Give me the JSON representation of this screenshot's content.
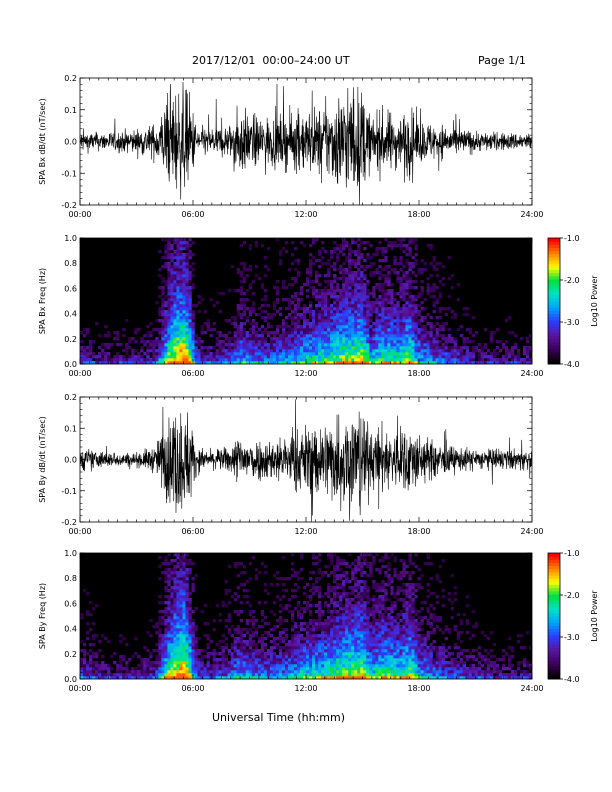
{
  "header": {
    "title": "2017/12/01  00:00–24:00 UT",
    "page": "Page 1/1"
  },
  "xlabel": "Universal Time (hh:mm)",
  "colors": {
    "waveform": "#000000",
    "colormap": [
      "#000000",
      "#3b005a",
      "#5a14a0",
      "#2c3cff",
      "#00a0ff",
      "#00e0c8",
      "#00e040",
      "#ffff00",
      "#ff8000",
      "#ff0000"
    ]
  },
  "chart_data": [
    {
      "type": "line",
      "ylabel": "SPA Bx dB/dt (nT/sec)",
      "x_ticks": [
        "00:00",
        "06:00",
        "12:00",
        "18:00",
        "24:00"
      ],
      "xlim": [
        0,
        24
      ],
      "ylim": [
        -0.2,
        0.2
      ],
      "y_ticks": [
        "-0.2",
        "-0.1",
        "0.0",
        "0.1",
        "0.2"
      ],
      "y_tick_values": [
        -0.2,
        -0.1,
        0.0,
        0.1,
        0.2
      ],
      "activity_hours": [
        0,
        1,
        2,
        3,
        4,
        4.7,
        5.0,
        5.5,
        5.8,
        6.2,
        7,
        8,
        8.5,
        9,
        10,
        11,
        12,
        13,
        13.5,
        14,
        15,
        15.5,
        16,
        17,
        17.5,
        18,
        19,
        20,
        21,
        22,
        23,
        24
      ],
      "activity_amplitude": [
        0.06,
        0.05,
        0.06,
        0.07,
        0.1,
        0.25,
        0.3,
        0.3,
        0.28,
        0.08,
        0.08,
        0.1,
        0.2,
        0.15,
        0.14,
        0.15,
        0.18,
        0.2,
        0.25,
        0.3,
        0.3,
        0.12,
        0.18,
        0.15,
        0.2,
        0.12,
        0.1,
        0.08,
        0.06,
        0.05,
        0.05,
        0.05
      ]
    },
    {
      "type": "heatmap",
      "ylabel": "SPA Bx Freq (Hz)",
      "x_ticks": [
        "00:00",
        "06:00",
        "12:00",
        "18:00",
        "24:00"
      ],
      "xlim": [
        0,
        24
      ],
      "ylim": [
        0,
        1.0
      ],
      "y_ticks": [
        "0.0",
        "0.2",
        "0.4",
        "0.6",
        "0.8",
        "1.0"
      ],
      "y_tick_values": [
        0,
        0.2,
        0.4,
        0.6,
        0.8,
        1.0
      ],
      "colorbar_label": "Log10 Power",
      "colorbar_range": [
        -4.0,
        -1.0
      ],
      "colorbar_ticks": [
        "-1.0",
        "-2.0",
        "-3.0",
        "-4.0"
      ],
      "colorbar_tick_values": [
        -1.0,
        -2.0,
        -3.0,
        -4.0
      ],
      "activity_hours": [
        0,
        1,
        2,
        3,
        4,
        4.7,
        5.0,
        5.5,
        5.8,
        6.2,
        7,
        8,
        8.5,
        9,
        10,
        11,
        12,
        13,
        13.5,
        14,
        15,
        15.5,
        16,
        17,
        17.5,
        18,
        19,
        20,
        21,
        22,
        23,
        24
      ],
      "activity_level": [
        0.35,
        0.3,
        0.3,
        0.3,
        0.35,
        0.75,
        0.85,
        0.95,
        0.8,
        0.4,
        0.35,
        0.4,
        0.55,
        0.5,
        0.45,
        0.5,
        0.6,
        0.65,
        0.7,
        0.75,
        0.8,
        0.55,
        0.7,
        0.65,
        0.75,
        0.55,
        0.45,
        0.4,
        0.3,
        0.3,
        0.3,
        0.3
      ]
    },
    {
      "type": "line",
      "ylabel": "SPA By dB/dt (nT/sec)",
      "x_ticks": [
        "00:00",
        "06:00",
        "12:00",
        "18:00",
        "24:00"
      ],
      "xlim": [
        0,
        24
      ],
      "ylim": [
        -0.2,
        0.2
      ],
      "y_ticks": [
        "-0.2",
        "-0.1",
        "0.0",
        "0.1",
        "0.2"
      ],
      "y_tick_values": [
        -0.2,
        -0.1,
        0.0,
        0.1,
        0.2
      ],
      "activity_hours": [
        0,
        1,
        2,
        3,
        4,
        4.7,
        5.0,
        5.5,
        5.8,
        6.2,
        7,
        8,
        8.5,
        9,
        10,
        11,
        12,
        13,
        13.5,
        14,
        15,
        15.5,
        16,
        17,
        17.5,
        18,
        19,
        20,
        21,
        22,
        23,
        24
      ],
      "activity_amplitude": [
        0.07,
        0.05,
        0.04,
        0.04,
        0.08,
        0.25,
        0.3,
        0.3,
        0.28,
        0.07,
        0.05,
        0.08,
        0.15,
        0.12,
        0.12,
        0.14,
        0.2,
        0.22,
        0.25,
        0.3,
        0.3,
        0.15,
        0.2,
        0.16,
        0.22,
        0.14,
        0.1,
        0.07,
        0.06,
        0.06,
        0.06,
        0.06
      ]
    },
    {
      "type": "heatmap",
      "ylabel": "SPA By Freq (Hz)",
      "x_ticks": [
        "00:00",
        "06:00",
        "12:00",
        "18:00",
        "24:00"
      ],
      "xlim": [
        0,
        24
      ],
      "ylim": [
        0,
        1.0
      ],
      "y_ticks": [
        "0.0",
        "0.2",
        "0.4",
        "0.6",
        "0.8",
        "1.0"
      ],
      "y_tick_values": [
        0,
        0.2,
        0.4,
        0.6,
        0.8,
        1.0
      ],
      "colorbar_label": "Log10 Power",
      "colorbar_range": [
        -4.0,
        -1.0
      ],
      "colorbar_ticks": [
        "-1.0",
        "-2.0",
        "-3.0",
        "-4.0"
      ],
      "colorbar_tick_values": [
        -1.0,
        -2.0,
        -3.0,
        -4.0
      ],
      "activity_hours": [
        0,
        1,
        2,
        3,
        4,
        4.7,
        5.0,
        5.5,
        5.8,
        6.2,
        7,
        8,
        8.5,
        9,
        10,
        11,
        12,
        13,
        13.5,
        14,
        15,
        15.5,
        16,
        17,
        17.5,
        18,
        19,
        20,
        21,
        22,
        23,
        24
      ],
      "activity_level": [
        0.4,
        0.35,
        0.3,
        0.3,
        0.35,
        0.75,
        0.85,
        0.95,
        0.8,
        0.4,
        0.35,
        0.45,
        0.55,
        0.5,
        0.45,
        0.5,
        0.6,
        0.65,
        0.7,
        0.75,
        0.8,
        0.6,
        0.7,
        0.65,
        0.75,
        0.55,
        0.45,
        0.4,
        0.35,
        0.3,
        0.3,
        0.3
      ]
    }
  ]
}
